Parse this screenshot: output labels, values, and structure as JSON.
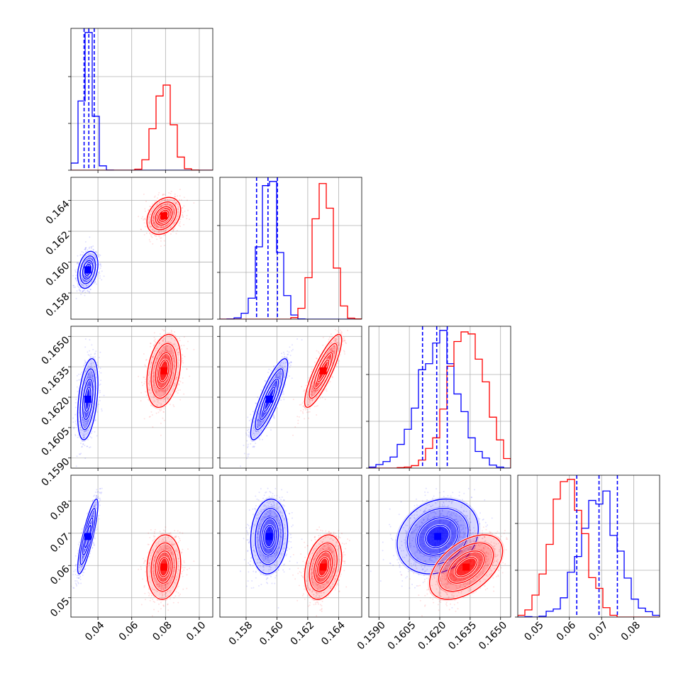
{
  "chart_data": {
    "type": "corner",
    "grid": true,
    "params": [
      {
        "range": [
          0.024,
          0.108
        ],
        "ticks": [
          0.04,
          0.06,
          0.08,
          0.1
        ],
        "tick_labels": [
          "0.04",
          "0.06",
          "0.08",
          "0.10"
        ]
      },
      {
        "range": [
          0.1563,
          0.1655
        ],
        "ticks": [
          0.158,
          0.16,
          0.162,
          0.164
        ],
        "tick_labels": [
          "0.158",
          "0.160",
          "0.162",
          "0.164"
        ]
      },
      {
        "range": [
          0.1585,
          0.1655
        ],
        "ticks": [
          0.159,
          0.1605,
          0.162,
          0.1635,
          0.165
        ],
        "tick_labels": [
          "0.1590",
          "0.1605",
          "0.1620",
          "0.1635",
          "0.1650"
        ]
      },
      {
        "range": [
          0.044,
          0.088
        ],
        "ticks": [
          0.05,
          0.06,
          0.07,
          0.08
        ],
        "tick_labels": [
          "0.05",
          "0.06",
          "0.07",
          "0.08"
        ]
      }
    ],
    "series": [
      {
        "color": "#0000ff",
        "mean": [
          0.034,
          0.1595,
          0.1619,
          0.069
        ],
        "std": [
          0.003,
          0.0006,
          0.001,
          0.0058
        ],
        "corr": [
          [
            1,
            0.3,
            0.4,
            0.85
          ],
          [
            0.3,
            1,
            0.85,
            0.1
          ],
          [
            0.4,
            0.85,
            1,
            0.2
          ],
          [
            0.85,
            0.1,
            0.2,
            1
          ]
        ]
      },
      {
        "color": "#ff0000",
        "mean": [
          0.079,
          0.163,
          0.1633,
          0.0595
        ],
        "std": [
          0.005,
          0.0006,
          0.0009,
          0.005
        ],
        "corr": [
          [
            1,
            0.3,
            0.3,
            0.1
          ],
          [
            0.3,
            1,
            0.85,
            0.3
          ],
          [
            0.3,
            0.85,
            1,
            0.5
          ],
          [
            0.1,
            0.3,
            0.5,
            1
          ]
        ]
      }
    ],
    "quantiles": [
      {
        "param": 0,
        "values": [
          0.0318,
          0.0346,
          0.0378
        ]
      },
      {
        "param": 1,
        "values": [
          0.15868,
          0.15942,
          0.16003
        ]
      },
      {
        "param": 2,
        "values": [
          0.16115,
          0.16185,
          0.16237
        ]
      },
      {
        "param": 3,
        "values": [
          0.0623,
          0.0692,
          0.0749
        ]
      }
    ]
  }
}
